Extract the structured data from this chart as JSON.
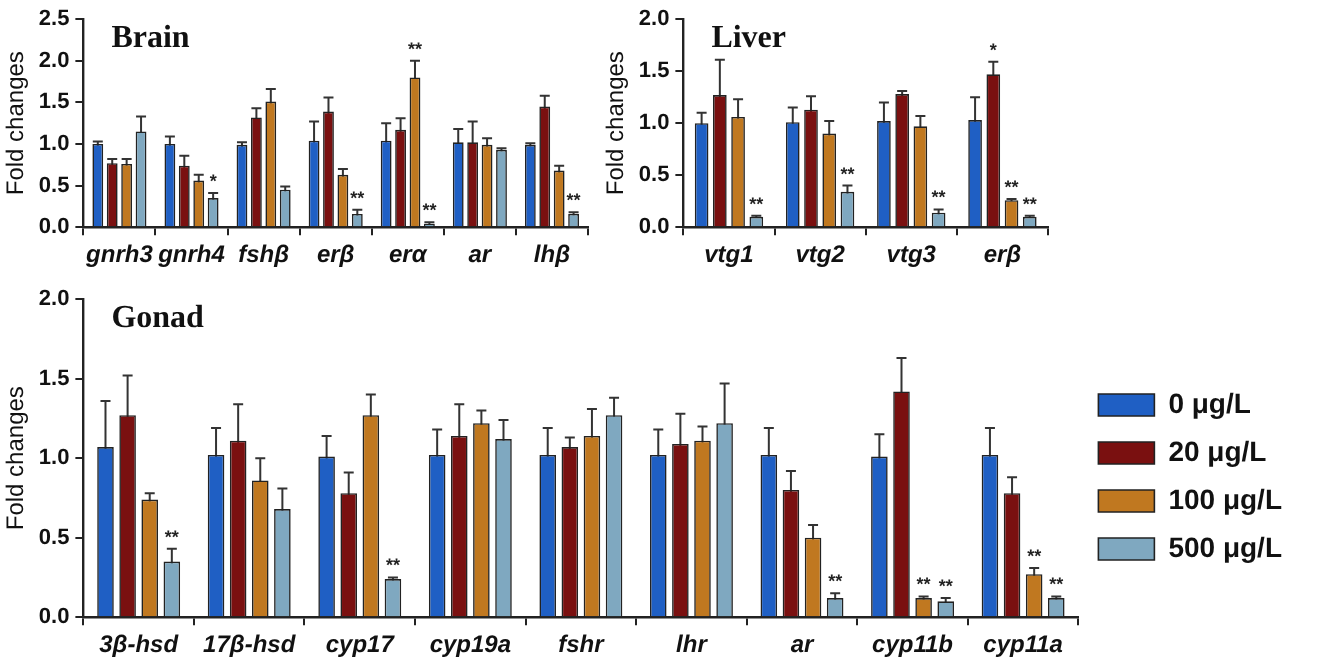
{
  "chart_data": [
    {
      "type": "bar",
      "title": "Brain",
      "ylabel": "Fold changes",
      "categories": [
        "gnrh3",
        "gnrh4",
        "fshβ",
        "erβ",
        "erα",
        "ar",
        "lhβ"
      ],
      "ylim": [
        0,
        2.5
      ],
      "yticks": [
        {
          "value": 0,
          "label": "0.0"
        },
        0.5,
        {
          "value": 1,
          "label": "1.0"
        },
        1.5,
        {
          "value": 2,
          "label": "2.0"
        },
        2.5
      ],
      "grid": false,
      "legend": false,
      "series": [
        {
          "color": "#1f5fc4",
          "values": [
            1.0,
            1.0,
            0.99,
            1.04,
            1.04,
            1.02,
            0.99
          ],
          "errors": [
            0.03,
            0.09,
            0.03,
            0.23,
            0.21,
            0.16,
            0.02
          ],
          "value_labels": [
            null,
            null,
            null,
            null,
            null,
            null,
            null
          ]
        },
        {
          "color": "#7a1010",
          "values": [
            0.77,
            0.74,
            1.32,
            1.39,
            1.17,
            1.02,
            1.45
          ],
          "errors": [
            0.05,
            0.12,
            0.11,
            0.17,
            0.14,
            0.25,
            0.13
          ],
          "value_labels": [
            null,
            null,
            null,
            null,
            null,
            null,
            null
          ]
        },
        {
          "color": "#c07820",
          "values": [
            0.76,
            0.56,
            1.51,
            0.63,
            1.8,
            0.99,
            0.68
          ],
          "errors": [
            0.06,
            0.07,
            0.15,
            0.07,
            0.2,
            0.08,
            0.06
          ],
          "value_labels": [
            null,
            null,
            null,
            null,
            "**",
            null,
            null
          ]
        },
        {
          "color": "#7fa8c0",
          "values": [
            1.15,
            0.35,
            0.45,
            0.16,
            0.04,
            0.93,
            0.16
          ],
          "errors": [
            0.18,
            0.06,
            0.04,
            0.05,
            0.02,
            0.02,
            0.02
          ],
          "value_labels": [
            null,
            "*",
            null,
            "**",
            "**",
            null,
            "**"
          ]
        }
      ]
    },
    {
      "type": "bar",
      "title": "Liver",
      "ylabel": "Fold changes",
      "categories": [
        "vtg1",
        "vtg2",
        "vtg3",
        "erβ"
      ],
      "ylim": [
        0,
        2.0
      ],
      "yticks": [
        {
          "value": 0,
          "label": "0.0"
        },
        0.5,
        {
          "value": 1,
          "label": "1.0"
        },
        1.5,
        {
          "value": 2,
          "label": "2.0"
        }
      ],
      "grid": false,
      "legend": false,
      "series": [
        {
          "color": "#1f5fc4",
          "values": [
            1.0,
            1.01,
            1.02,
            1.03
          ],
          "errors": [
            0.1,
            0.14,
            0.18,
            0.22
          ],
          "value_labels": [
            null,
            null,
            null,
            null
          ]
        },
        {
          "color": "#7a1010",
          "values": [
            1.27,
            1.13,
            1.28,
            1.47
          ],
          "errors": [
            0.34,
            0.13,
            0.03,
            0.12
          ],
          "value_labels": [
            null,
            null,
            null,
            "*"
          ]
        },
        {
          "color": "#c07820",
          "values": [
            1.06,
            0.9,
            0.97,
            0.26
          ],
          "errors": [
            0.17,
            0.12,
            0.1,
            0.01
          ],
          "value_labels": [
            null,
            null,
            null,
            "**"
          ]
        },
        {
          "color": "#7fa8c0",
          "values": [
            0.1,
            0.34,
            0.14,
            0.1
          ],
          "errors": [
            0.01,
            0.06,
            0.03,
            0.01
          ],
          "value_labels": [
            "**",
            "**",
            "**",
            "**"
          ]
        }
      ]
    },
    {
      "type": "bar",
      "title": "Gonad",
      "ylabel": "Fold changes",
      "categories": [
        "3β-hsd",
        "17β-hsd",
        "cyp17",
        "cyp19a",
        "fshr",
        "lhr",
        "ar",
        "cyp11b",
        "cyp11a"
      ],
      "ylim": [
        0,
        2.0
      ],
      "yticks": [
        {
          "value": 0,
          "label": "0.0"
        },
        0.5,
        {
          "value": 1,
          "label": "1.0"
        },
        1.5,
        {
          "value": 2,
          "label": "2.0"
        }
      ],
      "grid": false,
      "legend": "right",
      "series": [
        {
          "name": "0 μg/L",
          "color": "#1f5fc4",
          "values": [
            1.07,
            1.02,
            1.01,
            1.02,
            1.02,
            1.02,
            1.02,
            1.01,
            1.02
          ],
          "errors": [
            0.29,
            0.17,
            0.13,
            0.16,
            0.17,
            0.16,
            0.17,
            0.14,
            0.17
          ],
          "value_labels": [
            null,
            null,
            null,
            null,
            null,
            null,
            null,
            null,
            null
          ]
        },
        {
          "name": "20 μg/L",
          "color": "#7a1010",
          "values": [
            1.27,
            1.11,
            0.78,
            1.14,
            1.07,
            1.09,
            0.8,
            1.42,
            0.78
          ],
          "errors": [
            0.25,
            0.23,
            0.13,
            0.2,
            0.06,
            0.19,
            0.12,
            0.21,
            0.1
          ],
          "value_labels": [
            null,
            null,
            null,
            null,
            null,
            null,
            null,
            null,
            null
          ]
        },
        {
          "name": "100 μg/L",
          "color": "#c07820",
          "values": [
            0.74,
            0.86,
            1.27,
            1.22,
            1.14,
            1.11,
            0.5,
            0.12,
            0.27
          ],
          "errors": [
            0.04,
            0.14,
            0.13,
            0.08,
            0.17,
            0.09,
            0.08,
            0.01,
            0.04
          ],
          "value_labels": [
            null,
            null,
            null,
            null,
            null,
            null,
            null,
            "**",
            "**"
          ]
        },
        {
          "name": "500 μg/L",
          "color": "#7fa8c0",
          "values": [
            0.35,
            0.68,
            0.24,
            1.12,
            1.27,
            1.22,
            0.12,
            0.1,
            0.12
          ],
          "errors": [
            0.08,
            0.13,
            0.01,
            0.12,
            0.11,
            0.25,
            0.03,
            0.02,
            0.01
          ],
          "value_labels": [
            "**",
            null,
            "**",
            null,
            null,
            null,
            "**",
            "**",
            "**"
          ]
        }
      ]
    }
  ]
}
